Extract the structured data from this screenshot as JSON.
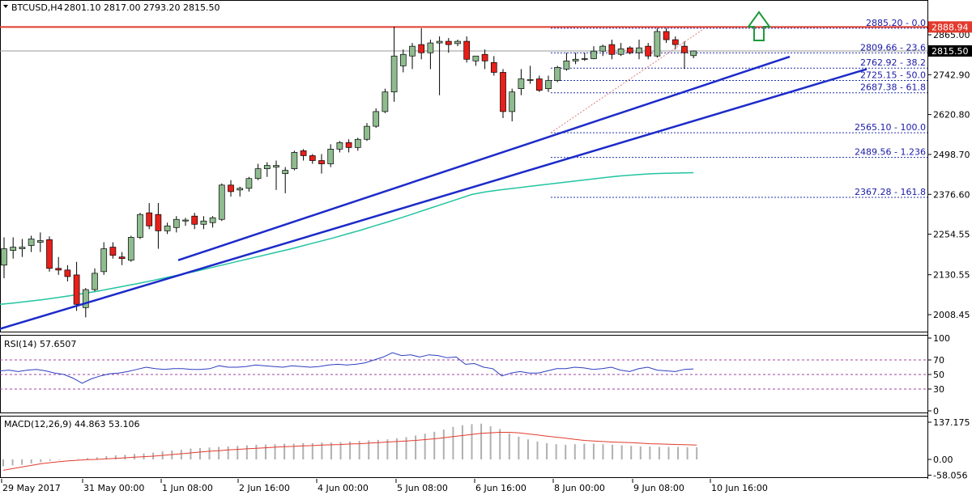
{
  "header": {
    "symbol": "BTCUSD,H4",
    "ohlc": "2801.10 2817.00 2793.20 2815.50"
  },
  "colors": {
    "bull": "#8fbc8f",
    "bear": "#e8201a",
    "trendline": "#1c2bc8",
    "ma": "#22c4a0",
    "resistance": "#e23b2e",
    "arrow": "#1f9a3c",
    "fib": "#2233aa",
    "rsi": "#2e3ec0",
    "macd_signal": "#e23b2e",
    "macd_hist": "#b0b0b0"
  },
  "price_axis": {
    "ticks": [
      "2865.00",
      "2742.90",
      "2620.80",
      "2498.70",
      "2376.60",
      "2254.55",
      "2130.55",
      "2008.45"
    ],
    "current_price": "2815.50",
    "resistance_price": "2888.94"
  },
  "fib_levels": [
    {
      "label": "2885.20 - 0.0",
      "value": 2885.2
    },
    {
      "label": "2809.66 - 23.6",
      "value": 2809.66
    },
    {
      "label": "2762.92 - 38.2",
      "value": 2762.92
    },
    {
      "label": "2725.15 - 50.0",
      "value": 2725.15
    },
    {
      "label": "2687.38 - 61.8",
      "value": 2687.38
    },
    {
      "label": "2565.10 - 100.0",
      "value": 2565.1
    },
    {
      "label": "2489.56 - 1.236",
      "value": 2489.56
    },
    {
      "label": "2367.28 - 161.8",
      "value": 2367.28
    }
  ],
  "time_axis": [
    "29 May 2017",
    "31 May 00:00",
    "1 Jun 08:00",
    "2 Jun 16:00",
    "4 Jun 00:00",
    "5 Jun 08:00",
    "6 Jun 16:00",
    "8 Jun 00:00",
    "9 Jun 08:00",
    "10 Jun 16:00"
  ],
  "rsi": {
    "label": "RSI(14) 57.6507",
    "ticks": [
      "100",
      "70",
      "50",
      "30",
      "0"
    ]
  },
  "macd": {
    "label": "MACD(12,26,9) 44.863 53.106",
    "ticks": [
      "137.175",
      "0.00",
      "-58.056"
    ]
  },
  "chart_data": {
    "type": "candlestick",
    "title": "BTCUSD,H4",
    "ylim": [
      1950,
      2925
    ],
    "candles": [
      {
        "o": 2160,
        "h": 2245,
        "l": 2120,
        "c": 2210
      },
      {
        "o": 2205,
        "h": 2245,
        "l": 2180,
        "c": 2215
      },
      {
        "o": 2210,
        "h": 2240,
        "l": 2185,
        "c": 2215
      },
      {
        "o": 2220,
        "h": 2250,
        "l": 2200,
        "c": 2240
      },
      {
        "o": 2230,
        "h": 2260,
        "l": 2200,
        "c": 2235
      },
      {
        "o": 2238,
        "h": 2248,
        "l": 2140,
        "c": 2150
      },
      {
        "o": 2150,
        "h": 2185,
        "l": 2130,
        "c": 2145
      },
      {
        "o": 2145,
        "h": 2160,
        "l": 2110,
        "c": 2125
      },
      {
        "o": 2130,
        "h": 2170,
        "l": 2020,
        "c": 2040
      },
      {
        "o": 2030,
        "h": 2090,
        "l": 2000,
        "c": 2085
      },
      {
        "o": 2085,
        "h": 2150,
        "l": 2080,
        "c": 2135
      },
      {
        "o": 2140,
        "h": 2230,
        "l": 2130,
        "c": 2210
      },
      {
        "o": 2215,
        "h": 2230,
        "l": 2180,
        "c": 2190
      },
      {
        "o": 2185,
        "h": 2200,
        "l": 2160,
        "c": 2180
      },
      {
        "o": 2175,
        "h": 2250,
        "l": 2170,
        "c": 2245
      },
      {
        "o": 2245,
        "h": 2320,
        "l": 2240,
        "c": 2315
      },
      {
        "o": 2320,
        "h": 2350,
        "l": 2270,
        "c": 2280
      },
      {
        "o": 2315,
        "h": 2350,
        "l": 2210,
        "c": 2265
      },
      {
        "o": 2265,
        "h": 2290,
        "l": 2255,
        "c": 2280
      },
      {
        "o": 2275,
        "h": 2310,
        "l": 2260,
        "c": 2300
      },
      {
        "o": 2295,
        "h": 2305,
        "l": 2280,
        "c": 2298
      },
      {
        "o": 2310,
        "h": 2320,
        "l": 2270,
        "c": 2285
      },
      {
        "o": 2285,
        "h": 2310,
        "l": 2270,
        "c": 2295
      },
      {
        "o": 2290,
        "h": 2310,
        "l": 2275,
        "c": 2305
      },
      {
        "o": 2300,
        "h": 2410,
        "l": 2295,
        "c": 2405
      },
      {
        "o": 2405,
        "h": 2420,
        "l": 2370,
        "c": 2385
      },
      {
        "o": 2390,
        "h": 2400,
        "l": 2370,
        "c": 2395
      },
      {
        "o": 2395,
        "h": 2430,
        "l": 2385,
        "c": 2425
      },
      {
        "o": 2425,
        "h": 2470,
        "l": 2420,
        "c": 2455
      },
      {
        "o": 2455,
        "h": 2475,
        "l": 2430,
        "c": 2465
      },
      {
        "o": 2460,
        "h": 2480,
        "l": 2390,
        "c": 2465
      },
      {
        "o": 2440,
        "h": 2460,
        "l": 2380,
        "c": 2450
      },
      {
        "o": 2455,
        "h": 2510,
        "l": 2450,
        "c": 2505
      },
      {
        "o": 2510,
        "h": 2515,
        "l": 2480,
        "c": 2495
      },
      {
        "o": 2495,
        "h": 2500,
        "l": 2470,
        "c": 2480
      },
      {
        "o": 2480,
        "h": 2500,
        "l": 2440,
        "c": 2470
      },
      {
        "o": 2470,
        "h": 2530,
        "l": 2460,
        "c": 2515
      },
      {
        "o": 2515,
        "h": 2540,
        "l": 2505,
        "c": 2535
      },
      {
        "o": 2535,
        "h": 2545,
        "l": 2505,
        "c": 2520
      },
      {
        "o": 2520,
        "h": 2550,
        "l": 2510,
        "c": 2545
      },
      {
        "o": 2545,
        "h": 2595,
        "l": 2540,
        "c": 2585
      },
      {
        "o": 2585,
        "h": 2640,
        "l": 2580,
        "c": 2630
      },
      {
        "o": 2630,
        "h": 2700,
        "l": 2625,
        "c": 2690
      },
      {
        "o": 2690,
        "h": 2890,
        "l": 2660,
        "c": 2800
      },
      {
        "o": 2770,
        "h": 2820,
        "l": 2750,
        "c": 2805
      },
      {
        "o": 2800,
        "h": 2840,
        "l": 2760,
        "c": 2830
      },
      {
        "o": 2835,
        "h": 2885,
        "l": 2790,
        "c": 2810
      },
      {
        "o": 2810,
        "h": 2850,
        "l": 2760,
        "c": 2840
      },
      {
        "o": 2840,
        "h": 2860,
        "l": 2680,
        "c": 2845
      },
      {
        "o": 2845,
        "h": 2855,
        "l": 2810,
        "c": 2835
      },
      {
        "o": 2838,
        "h": 2850,
        "l": 2830,
        "c": 2845
      },
      {
        "o": 2845,
        "h": 2860,
        "l": 2780,
        "c": 2790
      },
      {
        "o": 2785,
        "h": 2800,
        "l": 2770,
        "c": 2800
      },
      {
        "o": 2805,
        "h": 2820,
        "l": 2760,
        "c": 2785
      },
      {
        "o": 2780,
        "h": 2800,
        "l": 2740,
        "c": 2750
      },
      {
        "o": 2750,
        "h": 2760,
        "l": 2610,
        "c": 2630
      },
      {
        "o": 2630,
        "h": 2700,
        "l": 2600,
        "c": 2690
      },
      {
        "o": 2700,
        "h": 2760,
        "l": 2680,
        "c": 2730
      },
      {
        "o": 2725,
        "h": 2770,
        "l": 2715,
        "c": 2728
      },
      {
        "o": 2730,
        "h": 2740,
        "l": 2690,
        "c": 2695
      },
      {
        "o": 2700,
        "h": 2740,
        "l": 2690,
        "c": 2725
      },
      {
        "o": 2725,
        "h": 2770,
        "l": 2720,
        "c": 2765
      },
      {
        "o": 2760,
        "h": 2810,
        "l": 2755,
        "c": 2785
      },
      {
        "o": 2785,
        "h": 2810,
        "l": 2775,
        "c": 2790
      },
      {
        "o": 2790,
        "h": 2810,
        "l": 2785,
        "c": 2792
      },
      {
        "o": 2792,
        "h": 2830,
        "l": 2790,
        "c": 2815
      },
      {
        "o": 2815,
        "h": 2835,
        "l": 2800,
        "c": 2830
      },
      {
        "o": 2835,
        "h": 2850,
        "l": 2790,
        "c": 2805
      },
      {
        "o": 2805,
        "h": 2840,
        "l": 2800,
        "c": 2822
      },
      {
        "o": 2825,
        "h": 2830,
        "l": 2805,
        "c": 2810
      },
      {
        "o": 2810,
        "h": 2850,
        "l": 2790,
        "c": 2825
      },
      {
        "o": 2830,
        "h": 2840,
        "l": 2790,
        "c": 2800
      },
      {
        "o": 2800,
        "h": 2885,
        "l": 2795,
        "c": 2875
      },
      {
        "o": 2875,
        "h": 2885,
        "l": 2840,
        "c": 2850
      },
      {
        "o": 2850,
        "h": 2860,
        "l": 2820,
        "c": 2835
      },
      {
        "o": 2830,
        "h": 2845,
        "l": 2760,
        "c": 2810
      },
      {
        "o": 2801.1,
        "h": 2817,
        "l": 2793.2,
        "c": 2815.5
      }
    ],
    "moving_average": [
      2040,
      2044,
      2049,
      2054,
      2060,
      2066,
      2073,
      2080,
      2088,
      2096,
      2104,
      2113,
      2122,
      2131,
      2140,
      2150,
      2160,
      2170,
      2180,
      2190,
      2200,
      2210,
      2221,
      2232,
      2243,
      2255,
      2267,
      2280,
      2293,
      2306,
      2320,
      2334,
      2348,
      2362,
      2376,
      2384,
      2390,
      2395,
      2400,
      2405,
      2410,
      2415,
      2420,
      2425,
      2430,
      2434,
      2437,
      2440,
      2441,
      2442,
      2443
    ],
    "trendlines": [
      {
        "name": "upper",
        "x1": 17,
        "y1": 2175,
        "x2": 74,
        "y2": 2798
      },
      {
        "name": "lower",
        "x1": 0,
        "y1": 1965,
        "x2": 82,
        "y2": 2760
      }
    ],
    "rsi": {
      "name": "RSI(14)",
      "last": 57.6507,
      "ylim": [
        0,
        100
      ],
      "levels": [
        70,
        50,
        30
      ],
      "values": [
        55,
        56,
        54,
        56,
        57,
        55,
        52,
        50,
        45,
        38,
        44,
        48,
        51,
        52,
        54,
        57,
        60,
        58,
        57,
        58,
        58,
        57,
        57,
        58,
        62,
        60,
        60,
        61,
        63,
        62,
        61,
        60,
        62,
        61,
        60,
        61,
        63,
        64,
        63,
        64,
        66,
        70,
        74,
        80,
        76,
        77,
        74,
        77,
        76,
        73,
        74,
        64,
        65,
        60,
        58,
        48,
        52,
        54,
        52,
        52,
        55,
        58,
        58,
        60,
        59,
        57,
        58,
        60,
        56,
        54,
        58,
        60,
        56,
        55,
        54,
        57,
        57.6507
      ]
    },
    "macd": {
      "name": "MACD(12,26,9)",
      "values": [
        44.863
      ],
      "signal_last": 53.106,
      "ylim": [
        -58.056,
        137.175
      ],
      "hist": [
        -25,
        -22,
        -20,
        -15,
        -10,
        -5,
        -2,
        0,
        2,
        5,
        8,
        12,
        15,
        17,
        20,
        22,
        25,
        30,
        33,
        36,
        40,
        42,
        44,
        46,
        48,
        50,
        52,
        54,
        55,
        56,
        58,
        58,
        60,
        60,
        62,
        62,
        64,
        66,
        68,
        70,
        72,
        74,
        78,
        82,
        88,
        95,
        102,
        110,
        120,
        126,
        130,
        132,
        122,
        112,
        96,
        84,
        74,
        66,
        60,
        56,
        54,
        56,
        58,
        58,
        56,
        54,
        52,
        50,
        48,
        48,
        46,
        46,
        46,
        45,
        44.863
      ],
      "signal": [
        -40,
        -34,
        -28,
        -22,
        -16,
        -12,
        -8,
        -5,
        -3,
        -1,
        0,
        2,
        4,
        6,
        8,
        10,
        12,
        15,
        18,
        21,
        24,
        27,
        30,
        32,
        35,
        37,
        39,
        41,
        43,
        45,
        47,
        48,
        50,
        51,
        53,
        54,
        55,
        57,
        58,
        60,
        62,
        64,
        66,
        68,
        70,
        73,
        76,
        80,
        84,
        88,
        92,
        96,
        98,
        100,
        100,
        98,
        94,
        90,
        86,
        82,
        78,
        74,
        70,
        68,
        66,
        64,
        63,
        62,
        60,
        58,
        57,
        56,
        55,
        54,
        53.106
      ]
    }
  }
}
